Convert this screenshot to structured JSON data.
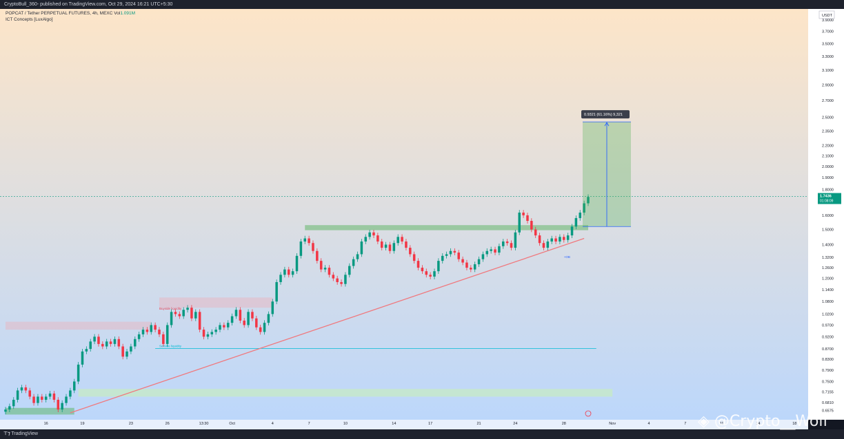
{
  "header": {
    "publish_text": "CryptoBull_360- published on TradingView.com, Oct 29, 2024 16:21 UTC+5:30"
  },
  "legend": {
    "symbol_line": "POPCAT / Tether PERPETUAL FUTURES, 4h, MEXC",
    "vol_label": "Vol",
    "vol_value": "1.091M",
    "indicator": "ICT Concepts [LuxAlgo]"
  },
  "currency_badge": "USDT",
  "price_badge": {
    "price": "1.7436",
    "countdown": "01:08:09"
  },
  "measure_label": "0.9321 (61.16%) 9,321",
  "annotations": {
    "buyside": "Buyside liquidity",
    "sellside": "Sellside liquidity",
    "ob_tag": "+OB"
  },
  "footer": {
    "brand": "TradingView"
  },
  "watermark": "@Crypto__Wolf",
  "colors": {
    "bull": "#089981",
    "bear": "#f23645",
    "trendline": "#f0797e",
    "measure_zone": "#4caf50",
    "measure_arrow": "#2962ff",
    "bg_top": "#fde5c8",
    "bg_bottom": "#bcd7fb"
  },
  "chart_data": {
    "type": "candlestick",
    "scale": "log",
    "ylim": [
      0.63,
      4.1
    ],
    "y_ticks": [
      3.9,
      3.7,
      3.5,
      3.3,
      3.1,
      2.9,
      2.7,
      2.5,
      2.35,
      2.2,
      2.1,
      2.0,
      1.9,
      1.8,
      1.6,
      1.5,
      1.4,
      1.32,
      1.26,
      1.2,
      1.14,
      1.08,
      1.02,
      0.97,
      0.92,
      0.87,
      0.83,
      0.79,
      0.75,
      0.7155,
      0.681,
      0.6575
    ],
    "y_tick_labels": [
      "3.9000",
      "3.7000",
      "3.5000",
      "3.3000",
      "3.1000",
      "2.9000",
      "2.7000",
      "2.5000",
      "2.3500",
      "2.2000",
      "2.1000",
      "2.0000",
      "1.9000",
      "1.8000",
      "1.6000",
      "1.5000",
      "1.4000",
      "1.3200",
      "1.2600",
      "1.2000",
      "1.1400",
      "1.0800",
      "1.0200",
      "0.9700",
      "0.9200",
      "0.8700",
      "0.8300",
      "0.7900",
      "0.7500",
      "0.7155",
      "0.6810",
      "0.6575"
    ],
    "x_ticks": [
      {
        "label": "16",
        "at": 10
      },
      {
        "label": "19",
        "at": 19
      },
      {
        "label": "23",
        "at": 31
      },
      {
        "label": "26",
        "at": 40
      },
      {
        "label": "13:30",
        "at": 49
      },
      {
        "label": "Oct",
        "at": 56
      },
      {
        "label": "4",
        "at": 66
      },
      {
        "label": "7",
        "at": 75
      },
      {
        "label": "10",
        "at": 84
      },
      {
        "label": "14",
        "at": 96
      },
      {
        "label": "17",
        "at": 105
      },
      {
        "label": "21",
        "at": 117
      },
      {
        "label": "24",
        "at": 126
      },
      {
        "label": "28",
        "at": 138
      },
      {
        "label": "Nov",
        "at": 150
      },
      {
        "label": "4",
        "at": 159
      },
      {
        "label": "7",
        "at": 168
      },
      {
        "label": "11",
        "at": 177
      },
      {
        "label": "14",
        "at": 186
      },
      {
        "label": "18",
        "at": 195
      }
    ],
    "x_range": [
      0,
      197
    ],
    "close": [
      0.66,
      0.67,
      0.69,
      0.72,
      0.73,
      0.72,
      0.7,
      0.68,
      0.7,
      0.69,
      0.7,
      0.71,
      0.69,
      0.66,
      0.68,
      0.7,
      0.72,
      0.75,
      0.81,
      0.86,
      0.87,
      0.9,
      0.92,
      0.89,
      0.88,
      0.9,
      0.89,
      0.91,
      0.88,
      0.84,
      0.86,
      0.88,
      0.91,
      0.93,
      0.95,
      0.94,
      0.97,
      0.95,
      0.93,
      0.89,
      0.97,
      1.03,
      1.02,
      1.01,
      1.04,
      1.05,
      1.0,
      1.03,
      0.95,
      0.92,
      0.93,
      0.94,
      0.95,
      0.97,
      0.96,
      0.98,
      1.01,
      1.04,
      0.99,
      0.97,
      1.03,
      1.0,
      0.96,
      0.94,
      0.98,
      1.02,
      1.08,
      1.18,
      1.22,
      1.25,
      1.22,
      1.24,
      1.33,
      1.42,
      1.44,
      1.41,
      1.36,
      1.3,
      1.25,
      1.26,
      1.22,
      1.2,
      1.18,
      1.17,
      1.22,
      1.27,
      1.31,
      1.34,
      1.42,
      1.45,
      1.48,
      1.46,
      1.42,
      1.38,
      1.4,
      1.36,
      1.41,
      1.45,
      1.42,
      1.38,
      1.34,
      1.3,
      1.26,
      1.24,
      1.22,
      1.21,
      1.24,
      1.3,
      1.33,
      1.34,
      1.36,
      1.35,
      1.31,
      1.29,
      1.26,
      1.25,
      1.28,
      1.31,
      1.34,
      1.36,
      1.37,
      1.35,
      1.39,
      1.42,
      1.41,
      1.38,
      1.48,
      1.62,
      1.6,
      1.56,
      1.5,
      1.46,
      1.41,
      1.38,
      1.42,
      1.44,
      1.42,
      1.45,
      1.43,
      1.46,
      1.52,
      1.58,
      1.62,
      1.69,
      1.74
    ],
    "current_price": 1.7436,
    "bars_per_x_unit": 1
  }
}
